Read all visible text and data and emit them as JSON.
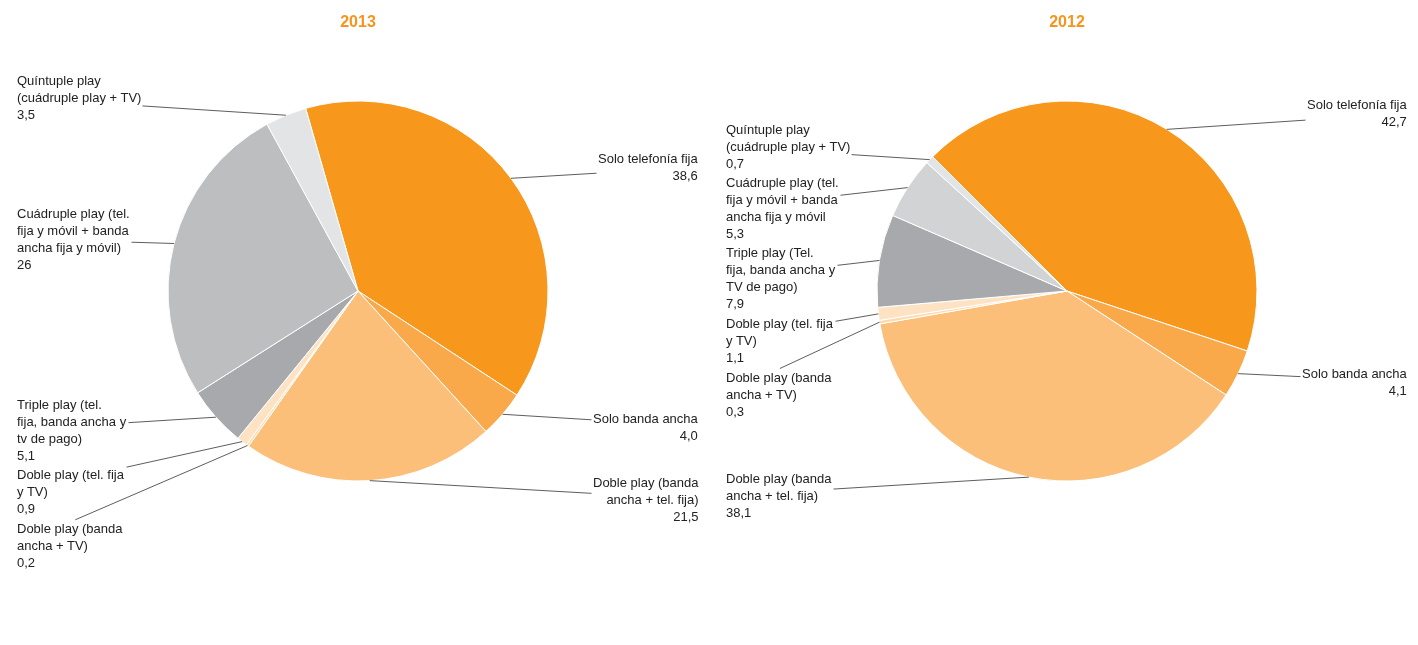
{
  "chart_data": [
    {
      "type": "pie",
      "title": "2013",
      "categories": [
        "Solo telefonía fija",
        "Solo banda ancha",
        "Doble play (banda ancha + tel. fija)",
        "Doble play (banda ancha + TV)",
        "Doble play (tel. fija y TV)",
        "Triple play (tel. fija, banda ancha y tv de pago)",
        "Cuádruple play (tel. fija y móvil + banda ancha fija y móvil)",
        "Quíntuple play (cuádruple play + TV)"
      ],
      "values": [
        38.6,
        4.0,
        21.5,
        0.2,
        0.9,
        5.1,
        26,
        3.5
      ],
      "value_labels": [
        "38,6",
        "4,0",
        "21,5",
        "0,2",
        "0,9",
        "5,1",
        "26",
        "3,5"
      ],
      "colors": [
        "#f7981d",
        "#f9a84a",
        "#fbbf79",
        "#fdd9ae",
        "#fde3c4",
        "#a7a9ac",
        "#bcbec0",
        "#e3e4e5"
      ]
    },
    {
      "type": "pie",
      "title": "2012",
      "categories": [
        "Solo telefonía fija",
        "Solo banda ancha",
        "Doble play (banda ancha + tel. fija)",
        "Doble play (banda ancha + TV)",
        "Doble play (tel. fija y TV)",
        "Triple play (Tel. fija, banda ancha y TV de pago)",
        "Cuádruple play (tel. fija y móvil + banda ancha fija y móvil",
        "Quíntuple play (cuádruple play + TV)"
      ],
      "values": [
        42.7,
        4.1,
        38.1,
        0.3,
        1.1,
        7.9,
        5.3,
        0.7
      ],
      "value_labels": [
        "42,7",
        "4,1",
        "38,1",
        "0,3",
        "1,1",
        "7,9",
        "5,3",
        "0,7"
      ],
      "colors": [
        "#f7981d",
        "#f9a84a",
        "#fbbf79",
        "#fdd9ae",
        "#fde3c4",
        "#a7a9ac",
        "#d1d3d4",
        "#e3e4e5"
      ]
    }
  ]
}
